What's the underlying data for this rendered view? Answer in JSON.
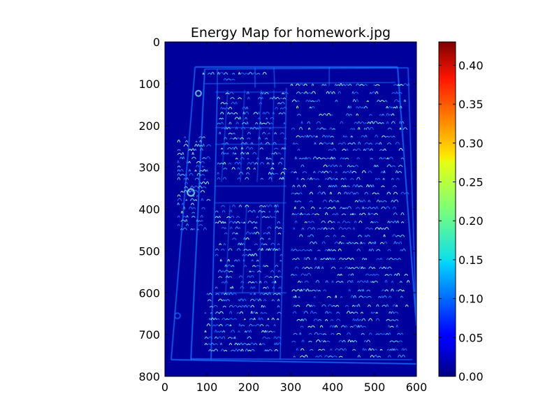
{
  "chart_data": {
    "type": "heatmap",
    "title": "Energy Map for homework.jpg",
    "xlabel": "",
    "ylabel": "",
    "x_ticks": [
      0,
      100,
      200,
      300,
      400,
      500,
      600
    ],
    "y_ticks": [
      0,
      100,
      200,
      300,
      400,
      500,
      600,
      700,
      800
    ],
    "xlim": [
      0,
      600
    ],
    "ylim": [
      800,
      0
    ],
    "colormap": "jet",
    "colorbar": {
      "range": [
        0.0,
        0.43
      ],
      "ticks": [
        0.0,
        0.05,
        0.1,
        0.15,
        0.2,
        0.25,
        0.3,
        0.35,
        0.4
      ],
      "tick_labels": [
        "0.00",
        "0.05",
        "0.10",
        "0.15",
        "0.20",
        "0.25",
        "0.30",
        "0.35",
        "0.40"
      ]
    },
    "background_value": 0.03,
    "image_content": "photographed homework sheet edge-energy map",
    "grid": false,
    "colors": {
      "low": "#00007f",
      "background": "#00009c",
      "edge": "#1f6fff",
      "strong_edge": "#9fffff"
    }
  }
}
